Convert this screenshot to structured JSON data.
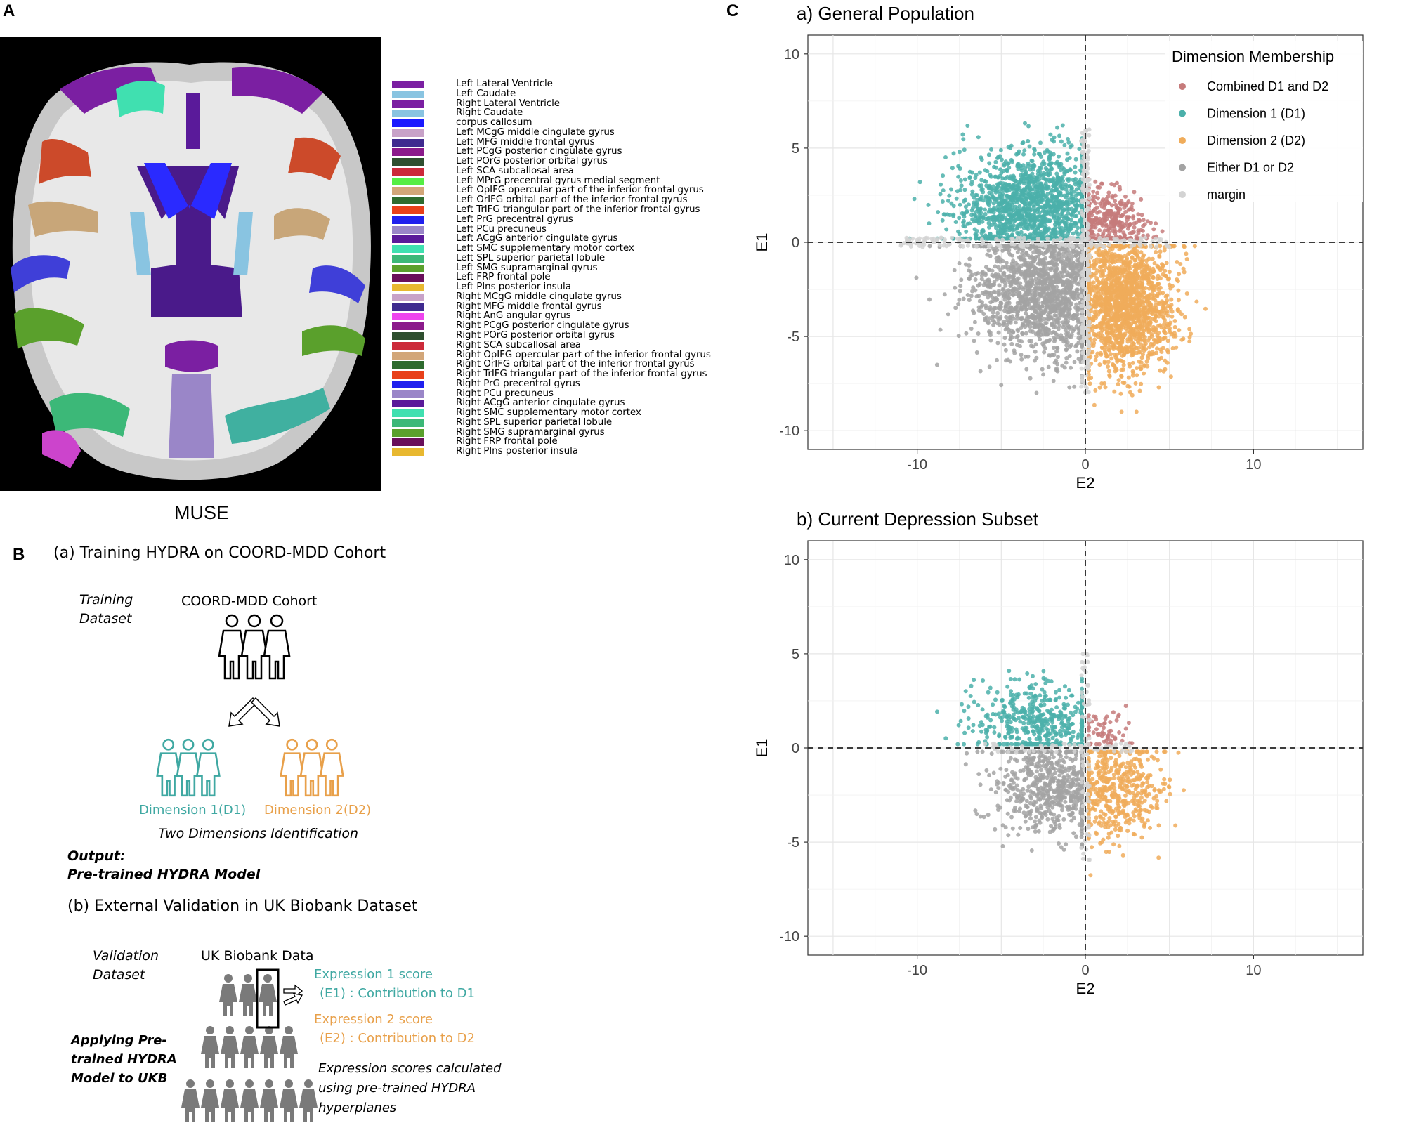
{
  "panels": {
    "a": "A",
    "b": "B",
    "c": "C"
  },
  "panel_a": {
    "caption": "MUSE",
    "legend": [
      {
        "label": "Left Lateral Ventricle",
        "color": "#7b1fa2"
      },
      {
        "label": "Left Caudate",
        "color": "#89c4e1"
      },
      {
        "label": "Right Lateral Ventricle",
        "color": "#7b1fa2"
      },
      {
        "label": "Right Caudate",
        "color": "#89c4e1"
      },
      {
        "label": "corpus callosum",
        "color": "#1a1aff"
      },
      {
        "label": "Left MCgG  middle cingulate gyrus",
        "color": "#c8a2c8"
      },
      {
        "label": "Left MFG   middle frontal gyrus",
        "color": "#3f2a8f"
      },
      {
        "label": "Left PCgG  posterior cingulate gyrus",
        "color": "#8b1a8b"
      },
      {
        "label": "Left POrG  posterior orbital gyrus",
        "color": "#2f4f2f"
      },
      {
        "label": "Left SCA   subcallosal area",
        "color": "#cc2a3a"
      },
      {
        "label": "Left MPrG  precentral gyrus medial segment",
        "color": "#55ee44"
      },
      {
        "label": "Left OpIFG opercular part of the inferior frontal gyrus",
        "color": "#d2a679"
      },
      {
        "label": "Left OrIFG orbital part of the inferior frontal gyrus",
        "color": "#2e6b2e"
      },
      {
        "label": "Left TrIFG triangular part of the inferior frontal gyrus",
        "color": "#e8401a"
      },
      {
        "label": "Left PrG   precentral gyrus",
        "color": "#2020ee"
      },
      {
        "label": "Left PCu   precuneus",
        "color": "#9a86c8"
      },
      {
        "label": "Left ACgG  anterior cingulate gyrus",
        "color": "#5a1a9a"
      },
      {
        "label": "Left SMC   supplementary motor cortex",
        "color": "#40e0b0"
      },
      {
        "label": "Left SPL   superior parietal lobule",
        "color": "#3cb878"
      },
      {
        "label": "Left SMG   supramarginal gyrus",
        "color": "#5aa02c"
      },
      {
        "label": "Left FRP   frontal pole",
        "color": "#6a0f5a"
      },
      {
        "label": "Left PIns  posterior insula",
        "color": "#e8b830"
      },
      {
        "label": "Right MCgG  middle cingulate gyrus",
        "color": "#c8a2c8"
      },
      {
        "label": "Right MFG   middle frontal gyrus",
        "color": "#3f2a8f"
      },
      {
        "label": "Right AnG   angular gyrus",
        "color": "#ee44ee"
      },
      {
        "label": "Right PCgG  posterior cingulate gyrus",
        "color": "#8b1a8b"
      },
      {
        "label": "Right POrG  posterior orbital gyrus",
        "color": "#2f4f2f"
      },
      {
        "label": "Right SCA   subcallosal area",
        "color": "#cc2a3a"
      },
      {
        "label": "Right OpIFG opercular part of the inferior frontal gyrus",
        "color": "#d2a679"
      },
      {
        "label": "Right OrIFG orbital part of the inferior frontal gyrus",
        "color": "#2e6b2e"
      },
      {
        "label": "Right TrIFG triangular part of the inferior frontal gyrus",
        "color": "#e8401a"
      },
      {
        "label": "Right PrG   precentral gyrus",
        "color": "#2020ee"
      },
      {
        "label": "Right PCu   precuneus",
        "color": "#9a86c8"
      },
      {
        "label": "Right ACgG  anterior cingulate gyrus",
        "color": "#5a1a9a"
      },
      {
        "label": "Right SMC   supplementary motor cortex",
        "color": "#40e0b0"
      },
      {
        "label": "Right SPL   superior parietal lobule",
        "color": "#3cb878"
      },
      {
        "label": "Right SMG   supramarginal gyrus",
        "color": "#5aa02c"
      },
      {
        "label": "Right FRP   frontal pole",
        "color": "#6a0f5a"
      },
      {
        "label": "Right PIns  posterior insula",
        "color": "#e8b830"
      }
    ]
  },
  "panel_b": {
    "title_a": "(a) Training HYDRA on COORD-MDD Cohort",
    "training_dataset_1": "Training",
    "training_dataset_2": "Dataset",
    "cohort": "COORD-MDD Cohort",
    "dim1": "Dimension 1(D1)",
    "dim2": "Dimension 2(D2)",
    "two_dims": "Two Dimensions Identification",
    "output_1": "Output:",
    "output_2": "Pre-trained HYDRA Model",
    "title_b": "(b) External Validation in UK Biobank Dataset",
    "validation_1": "Validation",
    "validation_2": "Dataset",
    "ukb_data": "UK Biobank Data",
    "expr1_line1": "Expression 1 score",
    "expr1_line2": "(E1) : Contribution to D1",
    "expr2_line1": "Expression 2 score",
    "expr2_line2": "(E2) : Contribution to D2",
    "apply_1": "Applying Pre-",
    "apply_2": "trained HYDRA",
    "apply_3": "Model to UKB",
    "calc_1": "Expression scores calculated",
    "calc_2": "using pre-trained HYDRA",
    "calc_3": "hyperplanes",
    "colors": {
      "teal": "#3fa8a2",
      "orange": "#e8a04a",
      "person_grey": "#7a7a7a"
    }
  },
  "chart_data": [
    {
      "type": "scatter",
      "title": "a) General Population",
      "xlabel": "E2",
      "ylabel": "E1",
      "xlim": [
        -16.5,
        16.5
      ],
      "ylim": [
        -11,
        11
      ],
      "xticks": [
        -10,
        0,
        10
      ],
      "yticks": [
        -10,
        -5,
        0,
        5,
        10
      ],
      "tick_labels_x": [
        "-10",
        "0",
        "10"
      ],
      "tick_labels_y": [
        "-10",
        "-5",
        "0",
        "5",
        "10"
      ],
      "grid": true,
      "reference_lines": {
        "x": 0,
        "y": 0,
        "style": "dashed"
      },
      "legend": {
        "title": "Dimension Membership",
        "position": "top-right",
        "items": [
          {
            "name": "Combined D1 and D2",
            "color": "#c67b7b"
          },
          {
            "name": "Dimension 1 (D1)",
            "color": "#4bb0aa"
          },
          {
            "name": "Dimension 2 (D2)",
            "color": "#f0ac5a"
          },
          {
            "name": "Either D1 or D2",
            "color": "#a3a3a3"
          },
          {
            "name": "margin",
            "color": "#d3d3d3"
          }
        ]
      },
      "clusters": [
        {
          "name": "Dimension 1 (D1)",
          "color": "#4bb0aa",
          "quadrant": "E2<0, E1>0",
          "x_range": [
            -12,
            -0.2
          ],
          "y_range": [
            0.2,
            8.0
          ],
          "center": [
            -3.2,
            1.8
          ],
          "spread": [
            2.3,
            1.5
          ],
          "approx_points": 2200
        },
        {
          "name": "Combined D1 and D2",
          "color": "#c67b7b",
          "quadrant": "E2>0, E1>0",
          "x_range": [
            0.2,
            5.0
          ],
          "y_range": [
            0.2,
            4.5
          ],
          "center": [
            1.3,
            1.0
          ],
          "spread": [
            1.1,
            0.9
          ],
          "approx_points": 500
        },
        {
          "name": "Dimension 2 (D2)",
          "color": "#f0ac5a",
          "quadrant": "E2>0, E1<0",
          "x_range": [
            0.2,
            8.0
          ],
          "y_range": [
            -9.0,
            -0.2
          ],
          "center": [
            2.2,
            -3.2
          ],
          "spread": [
            1.5,
            1.8
          ],
          "approx_points": 2400
        },
        {
          "name": "Either D1 or D2",
          "color": "#a3a3a3",
          "quadrant": "E2<0, E1<0",
          "x_range": [
            -12,
            -0.2
          ],
          "y_range": [
            -8.0,
            -0.2
          ],
          "center": [
            -2.0,
            -2.5
          ],
          "spread": [
            2.3,
            1.7
          ],
          "approx_points": 2600
        },
        {
          "name": "margin",
          "color": "#d3d3d3",
          "quadrant": "near axes",
          "x_range": [
            -11,
            5
          ],
          "y_range": [
            -8,
            6
          ],
          "center": [
            0,
            0
          ],
          "spread": [
            0.3,
            0.3
          ],
          "approx_points": 600
        }
      ]
    },
    {
      "type": "scatter",
      "title": "b) Current Depression Subset",
      "xlabel": "E2",
      "ylabel": "E1",
      "xlim": [
        -16.5,
        16.5
      ],
      "ylim": [
        -11,
        11
      ],
      "xticks": [
        -10,
        0,
        10
      ],
      "yticks": [
        -10,
        -5,
        0,
        5,
        10
      ],
      "tick_labels_x": [
        "-10",
        "0",
        "10"
      ],
      "tick_labels_y": [
        "-10",
        "-5",
        "0",
        "5",
        "10"
      ],
      "grid": true,
      "reference_lines": {
        "x": 0,
        "y": 0,
        "style": "dashed"
      },
      "clusters": [
        {
          "name": "Dimension 1 (D1)",
          "color": "#4bb0aa",
          "quadrant": "E2<0, E1>0",
          "x_range": [
            -9.3,
            -0.2
          ],
          "y_range": [
            0.2,
            6.0
          ],
          "center": [
            -2.8,
            1.4
          ],
          "spread": [
            2.0,
            1.1
          ],
          "approx_points": 650
        },
        {
          "name": "Combined D1 and D2",
          "color": "#c67b7b",
          "quadrant": "E2>0, E1>0",
          "x_range": [
            0.2,
            3.0
          ],
          "y_range": [
            0.2,
            3.3
          ],
          "center": [
            1.0,
            0.8
          ],
          "spread": [
            0.8,
            0.7
          ],
          "approx_points": 90
        },
        {
          "name": "Dimension 2 (D2)",
          "color": "#f0ac5a",
          "quadrant": "E2>0, E1<0",
          "x_range": [
            0.2,
            8.5
          ],
          "y_range": [
            -8.0,
            -0.2
          ],
          "center": [
            1.8,
            -2.3
          ],
          "spread": [
            1.4,
            1.4
          ],
          "approx_points": 700
        },
        {
          "name": "Either D1 or D2",
          "color": "#a3a3a3",
          "quadrant": "E2<0, E1<0",
          "x_range": [
            -9.0,
            -0.2
          ],
          "y_range": [
            -6.5,
            -0.2
          ],
          "center": [
            -2.0,
            -2.0
          ],
          "spread": [
            1.8,
            1.3
          ],
          "approx_points": 900
        },
        {
          "name": "margin",
          "color": "#d3d3d3",
          "quadrant": "near axes",
          "x_range": [
            -6,
            3
          ],
          "y_range": [
            -6,
            5
          ],
          "center": [
            0,
            0
          ],
          "spread": [
            0.3,
            0.3
          ],
          "approx_points": 200
        }
      ]
    }
  ]
}
